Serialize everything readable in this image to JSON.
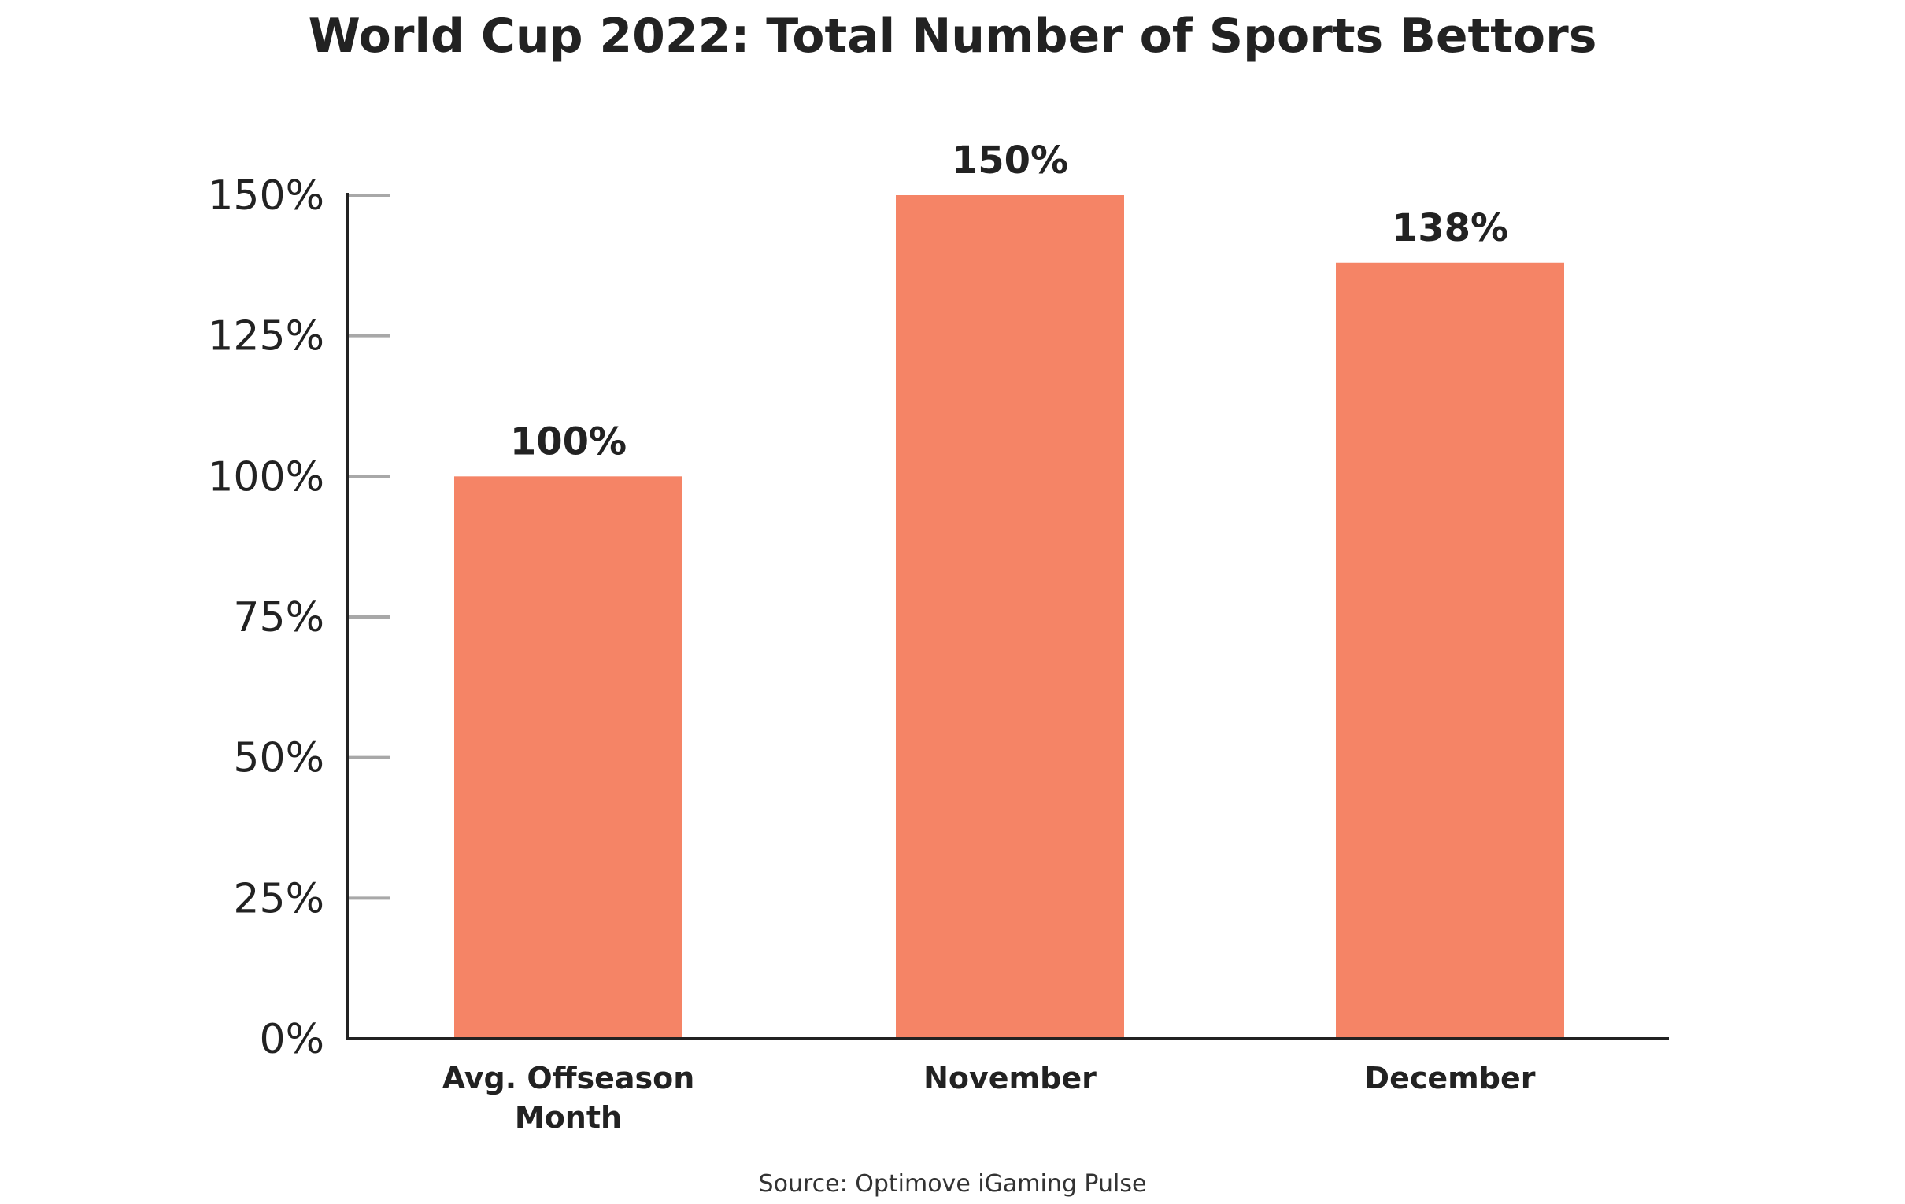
{
  "chart_data": {
    "type": "bar",
    "title": "World Cup 2022: Total Number of Sports Bettors",
    "categories": [
      "Avg. Offseason Month",
      "November",
      "December"
    ],
    "category_lines": [
      [
        "Avg. Offseason",
        "Month"
      ],
      [
        "November"
      ],
      [
        "December"
      ]
    ],
    "values": [
      100,
      150,
      138
    ],
    "value_labels": [
      "100%",
      "150%",
      "138%"
    ],
    "xlabel": "",
    "ylabel": "",
    "ylim": [
      0,
      150
    ],
    "yticks": [
      0,
      25,
      50,
      75,
      100,
      125,
      150
    ],
    "ytick_labels": [
      "0%",
      "25%",
      "50%",
      "75%",
      "100%",
      "125%",
      "150%"
    ],
    "grid": false,
    "legend": "none",
    "bar_color": "#F58466"
  },
  "source": "Source: Optimove iGaming Pulse"
}
